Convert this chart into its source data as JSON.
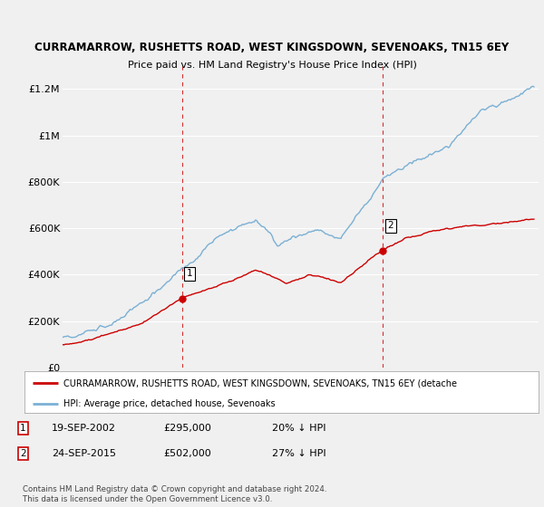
{
  "title_line1": "CURRAMARROW, RUSHETTS ROAD, WEST KINGSDOWN, SEVENOAKS, TN15 6EY",
  "title_line2": "Price paid vs. HM Land Registry's House Price Index (HPI)",
  "ylabel_ticks": [
    "£0",
    "£200K",
    "£400K",
    "£600K",
    "£800K",
    "£1M",
    "£1.2M"
  ],
  "ytick_values": [
    0,
    200000,
    400000,
    600000,
    800000,
    1000000,
    1200000
  ],
  "ylim": [
    0,
    1300000
  ],
  "xlim_start": 1995.0,
  "xlim_end": 2025.8,
  "legend_line1": "CURRAMARROW, RUSHETTS ROAD, WEST KINGSDOWN, SEVENOAKS, TN15 6EY (detache",
  "legend_line2": "HPI: Average price, detached house, Sevenoaks",
  "marker1_x": 2002.72,
  "marker1_y": 295000,
  "marker2_x": 2015.73,
  "marker2_y": 502000,
  "footnote": "Contains HM Land Registry data © Crown copyright and database right 2024.\nThis data is licensed under the Open Government Licence v3.0.",
  "red_color": "#cc0000",
  "blue_color": "#7ab0d4",
  "bg_color": "#f0f0f0",
  "plot_bg": "#f0f0f0",
  "grid_color": "#ffffff"
}
